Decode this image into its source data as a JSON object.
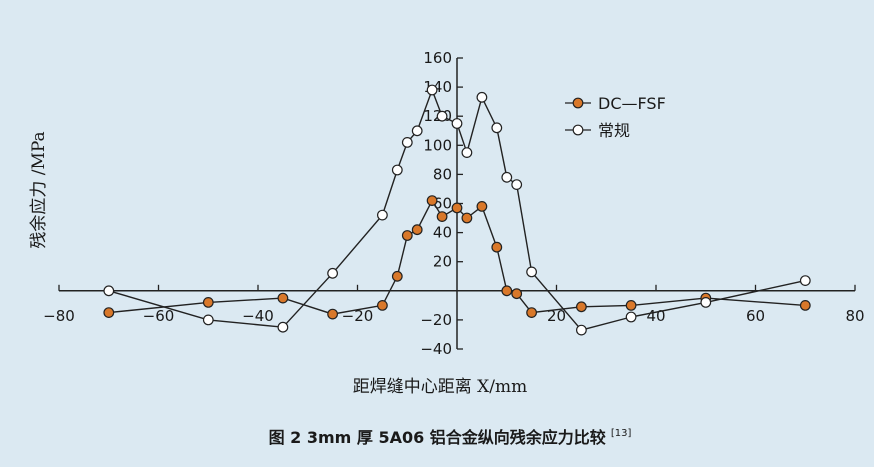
{
  "chart_data": {
    "type": "line",
    "title": "",
    "caption": "图 2 3mm 厚 5A06 铝合金纵向残余应力比较",
    "caption_ref": "[13]",
    "xlabel": "距焊缝中心距离 X/mm",
    "ylabel": "残余应力 /MPa",
    "xlim": [
      -80,
      80
    ],
    "ylim": [
      -40,
      160
    ],
    "x_ticks": [
      -80,
      -60,
      -40,
      -20,
      20,
      40,
      60,
      80
    ],
    "y_ticks": [
      160,
      140,
      120,
      100,
      80,
      60,
      40,
      20,
      -20,
      -40
    ],
    "x_tick_labels": [
      "−80",
      "−60",
      "−40",
      "−20",
      "20",
      "40",
      "60",
      "80"
    ],
    "y_tick_labels": [
      "160",
      "140",
      "120",
      "100",
      "80",
      "60",
      "40",
      "20",
      "−20",
      "−40"
    ],
    "grid": false,
    "legend_position": "top-right",
    "series": [
      {
        "name": "DC—FSF",
        "color": "#d9782a",
        "marker": "filled-circle",
        "points": [
          [
            -70,
            -15
          ],
          [
            -50,
            -8
          ],
          [
            -35,
            -5
          ],
          [
            -25,
            -16
          ],
          [
            -15,
            -10
          ],
          [
            -12,
            10
          ],
          [
            -10,
            38
          ],
          [
            -8,
            42
          ],
          [
            -5,
            62
          ],
          [
            -3,
            51
          ],
          [
            0,
            57
          ],
          [
            2,
            50
          ],
          [
            5,
            58
          ],
          [
            8,
            30
          ],
          [
            10,
            0
          ],
          [
            12,
            -2
          ],
          [
            15,
            -15
          ],
          [
            25,
            -11
          ],
          [
            35,
            -10
          ],
          [
            50,
            -5
          ],
          [
            70,
            -10
          ]
        ]
      },
      {
        "name": "常规",
        "color": "#ffffff",
        "marker": "open-circle",
        "points": [
          [
            -70,
            0
          ],
          [
            -50,
            -20
          ],
          [
            -35,
            -25
          ],
          [
            -25,
            12
          ],
          [
            -15,
            52
          ],
          [
            -12,
            83
          ],
          [
            -10,
            102
          ],
          [
            -8,
            110
          ],
          [
            -5,
            138
          ],
          [
            -3,
            120
          ],
          [
            0,
            115
          ],
          [
            2,
            95
          ],
          [
            5,
            133
          ],
          [
            8,
            112
          ],
          [
            10,
            78
          ],
          [
            12,
            73
          ],
          [
            15,
            13
          ],
          [
            25,
            -27
          ],
          [
            35,
            -18
          ],
          [
            50,
            -8
          ],
          [
            70,
            7
          ]
        ]
      }
    ]
  }
}
